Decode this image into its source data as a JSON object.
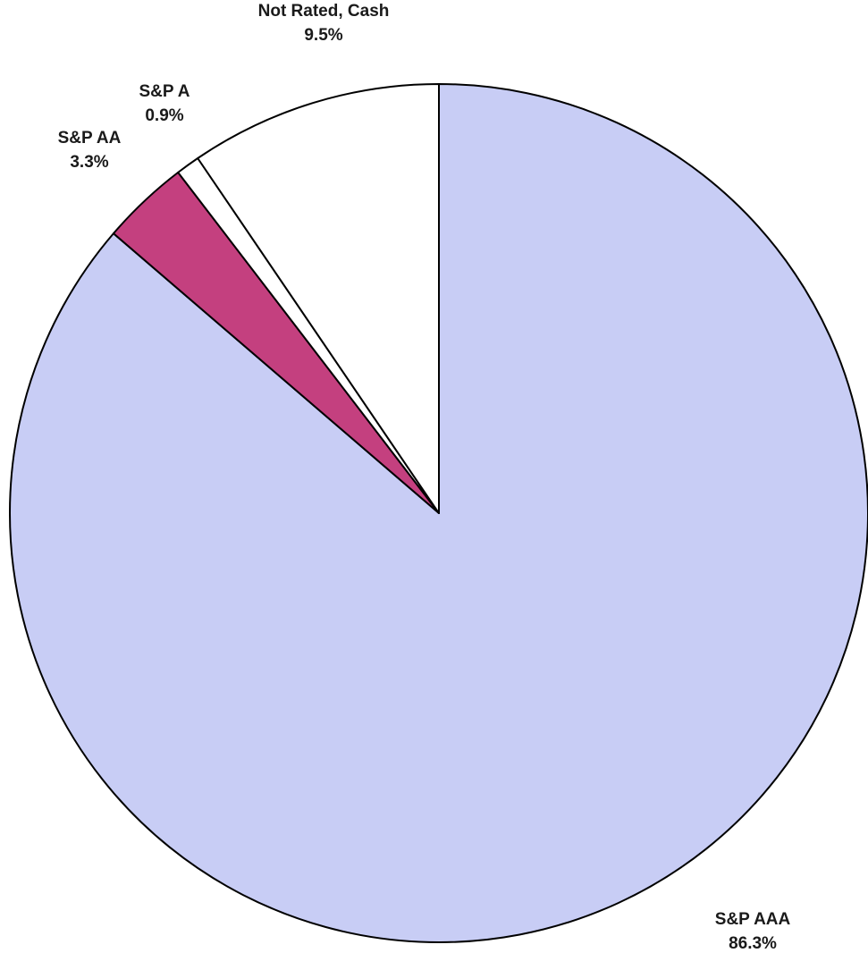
{
  "chart_data": {
    "type": "pie",
    "title": "",
    "start_angle": "12 o'clock",
    "direction": "clockwise",
    "slices": [
      {
        "label": "S&P AAA",
        "value": 86.3,
        "value_text": "86.3%",
        "color": "#c8cdf5"
      },
      {
        "label": "S&P AA",
        "value": 3.3,
        "value_text": "3.3%",
        "color": "#c4407f"
      },
      {
        "label": "S&P A",
        "value": 0.9,
        "value_text": "0.9%",
        "color": "#ffffff"
      },
      {
        "label": "Not Rated, Cash",
        "value": 9.5,
        "value_text": "9.5%",
        "color": "#ffffff"
      }
    ],
    "slice_outline_color": "#000000",
    "legend": "none"
  }
}
